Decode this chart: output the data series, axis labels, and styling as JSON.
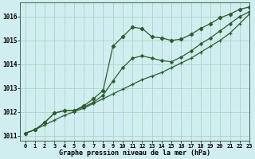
{
  "title": "Graphe pression niveau de la mer (hPa)",
  "background_color": "#d0eef0",
  "plot_background": "#d0eef0",
  "grid_color": "#b0d8cc",
  "line_color": "#2d5e2d",
  "xlim": [
    -0.5,
    23
  ],
  "ylim": [
    1010.8,
    1016.6
  ],
  "yticks": [
    1011,
    1012,
    1013,
    1014,
    1015,
    1016
  ],
  "xticks": [
    0,
    1,
    2,
    3,
    4,
    5,
    6,
    7,
    8,
    9,
    10,
    11,
    12,
    13,
    14,
    15,
    16,
    17,
    18,
    19,
    20,
    21,
    22,
    23
  ],
  "line_straight_x": [
    0,
    1,
    2,
    3,
    4,
    5,
    6,
    7,
    8,
    9,
    10,
    11,
    12,
    13,
    14,
    15,
    16,
    17,
    18,
    19,
    20,
    21,
    22,
    23
  ],
  "line_straight_y": [
    1011.1,
    1011.25,
    1011.45,
    1011.65,
    1011.85,
    1012.0,
    1012.15,
    1012.35,
    1012.55,
    1012.75,
    1012.95,
    1013.15,
    1013.35,
    1013.5,
    1013.65,
    1013.85,
    1014.05,
    1014.25,
    1014.5,
    1014.75,
    1015.0,
    1015.3,
    1015.7,
    1016.1
  ],
  "line_wavy_x": [
    0,
    1,
    2,
    3,
    4,
    5,
    6,
    7,
    8,
    9,
    10,
    11,
    12,
    13,
    14,
    15,
    16,
    17,
    18,
    19,
    20,
    21,
    22,
    23
  ],
  "line_wavy_y": [
    1011.1,
    1011.25,
    1011.55,
    1011.95,
    1012.05,
    1012.05,
    1012.25,
    1012.55,
    1012.9,
    1014.75,
    1015.15,
    1015.55,
    1015.5,
    1015.15,
    1015.1,
    1015.0,
    1015.05,
    1015.25,
    1015.5,
    1015.7,
    1015.95,
    1016.1,
    1016.3,
    1016.4
  ],
  "line_mid_x": [
    0,
    1,
    2,
    3,
    4,
    5,
    6,
    7,
    8,
    9,
    10,
    11,
    12,
    13,
    14,
    15,
    16,
    17,
    18,
    19,
    20,
    21,
    22,
    23
  ],
  "line_mid_y": [
    1011.1,
    1011.25,
    1011.55,
    1011.95,
    1012.05,
    1012.05,
    1012.2,
    1012.4,
    1012.7,
    1013.3,
    1013.85,
    1014.25,
    1014.35,
    1014.25,
    1014.15,
    1014.1,
    1014.3,
    1014.55,
    1014.85,
    1015.1,
    1015.4,
    1015.7,
    1016.0,
    1016.2
  ]
}
